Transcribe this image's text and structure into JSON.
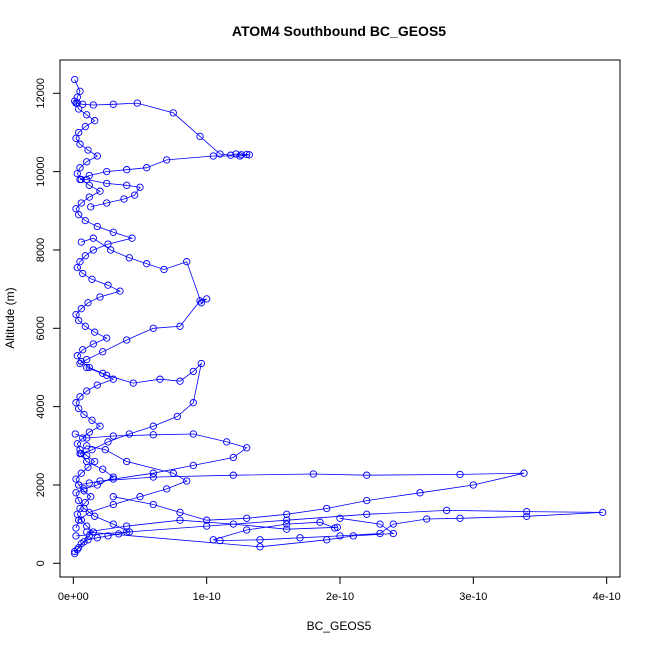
{
  "colors": {
    "series": "#0000ff",
    "frame": "#000000",
    "background": "#ffffff"
  },
  "chart_data": {
    "type": "scatter",
    "mode": "lines+markers",
    "marker": "open-circle",
    "title": "ATOM4 Southbound BC_GEOS5",
    "xlabel": "BC_GEOS5",
    "ylabel": "Altitude (m)",
    "xlim": [
      -1e-11,
      4.1e-10
    ],
    "ylim": [
      -350,
      12850
    ],
    "xticks": [
      0,
      1e-10,
      2e-10,
      3e-10,
      4e-10
    ],
    "xtick_labels": [
      "0e+00",
      "1e-10",
      "2e-10",
      "3e-10",
      "4e-10"
    ],
    "yticks": [
      0,
      2000,
      4000,
      6000,
      8000,
      10000,
      12000
    ],
    "ytick_labels": [
      "0",
      "2000",
      "4000",
      "6000",
      "8000",
      "10000",
      "12000"
    ],
    "grid": false,
    "legend": "none",
    "series": [
      {
        "x": [
          1e-12,
          4e-12,
          8e-12,
          1.2e-11,
          1.5e-11,
          1e-11,
          6e-12,
          3e-12,
          5e-12,
          9e-12,
          1.3e-11,
          8e-12,
          4e-12,
          2e-12,
          6e-12,
          1.1e-11,
          1.6e-11,
          1e-11,
          5e-12,
          3e-12,
          7e-12,
          1.2e-11,
          2e-11,
          1.4e-11,
          8e-12,
          4e-12,
          2e-12,
          5e-12,
          1e-11,
          1.8e-11,
          3e-11,
          2.2e-11,
          1.2e-11,
          6e-12,
          3e-12,
          7e-12,
          1.5e-11,
          2.5e-11,
          1.6e-11,
          9e-12,
          4e-12,
          2e-12,
          6e-12,
          1.1e-11,
          2e-11,
          3.5e-11,
          2.6e-11,
          1.4e-11,
          7e-12,
          3e-12,
          5e-12,
          9e-12,
          1.5e-11,
          2.6e-11,
          4.4e-11,
          3e-11,
          1.8e-11,
          9e-12,
          4e-12,
          2e-12,
          6e-12,
          1.2e-11,
          2e-11,
          1.2e-11,
          6e-12,
          3e-12,
          5e-12,
          1e-11,
          1.8e-11,
          1.1e-11,
          5e-12,
          2e-12,
          4e-12,
          9e-12,
          1.6e-11,
          1e-11,
          4e-12,
          2e-12,
          3e-12,
          5e-12,
          1e-12
        ],
        "y": [
          300,
          400,
          550,
          700,
          800,
          950,
          1100,
          1250,
          1400,
          1550,
          1700,
          1850,
          2000,
          2150,
          2300,
          2450,
          2600,
          2750,
          2900,
          3050,
          3200,
          3350,
          3500,
          3650,
          3800,
          3950,
          4100,
          4250,
          4400,
          4550,
          4700,
          4850,
          5000,
          5150,
          5300,
          5450,
          5600,
          5750,
          5900,
          6050,
          6200,
          6350,
          6500,
          6650,
          6800,
          6950,
          7100,
          7250,
          7400,
          7550,
          7700,
          7850,
          8000,
          8150,
          8300,
          8450,
          8600,
          8750,
          8900,
          9050,
          9200,
          9350,
          9500,
          9650,
          9800,
          9950,
          10100,
          10250,
          10400,
          10550,
          10700,
          10850,
          11000,
          11150,
          11300,
          11450,
          11600,
          11750,
          11900,
          12050,
          12350
        ]
      },
      {
        "x": [
          1e-12,
          3e-12,
          7e-12,
          1.5e-11,
          3e-11,
          4.8e-11,
          7.5e-11,
          9.5e-11,
          1.1e-10,
          1.18e-10,
          1.22e-10,
          1.26e-10,
          1.3e-10,
          1.32e-10,
          1.25e-10,
          1.05e-10,
          7e-11,
          5.5e-11,
          4e-11,
          2.5e-11,
          1.2e-11,
          5e-12,
          1e-11,
          2.5e-11,
          4e-11,
          5e-11,
          4.6e-11,
          3.8e-11,
          2.5e-11,
          1.3e-11
        ],
        "y": [
          11800,
          11750,
          11720,
          11700,
          11720,
          11750,
          11500,
          10900,
          10450,
          10420,
          10450,
          10430,
          10440,
          10430,
          10400,
          10400,
          10300,
          10100,
          10050,
          10000,
          9900,
          9800,
          9800,
          9700,
          9650,
          9600,
          9400,
          9300,
          9200,
          9100
        ]
      },
      {
        "x": [
          6e-12,
          1.5e-11,
          2.8e-11,
          4.2e-11,
          5.5e-11,
          6.8e-11,
          8.5e-11,
          9.6e-11,
          1e-10,
          9.5e-11,
          8e-11,
          6e-11,
          4e-11,
          2.2e-11,
          1e-11,
          5e-12
        ],
        "y": [
          8200,
          8300,
          8000,
          7800,
          7650,
          7500,
          7700,
          6650,
          6750,
          6700,
          6050,
          6000,
          5700,
          5400,
          5200,
          5100
        ]
      },
      {
        "x": [
          1e-11,
          2.5e-11,
          4.5e-11,
          6.5e-11,
          8e-11,
          9e-11,
          9.6e-11,
          9e-11,
          7.8e-11,
          6e-11,
          4.2e-11,
          2.6e-11,
          1.4e-11,
          6e-12
        ],
        "y": [
          5000,
          4800,
          4600,
          4700,
          4650,
          4900,
          5100,
          4100,
          3750,
          3500,
          3300,
          3100,
          2900,
          2800
        ]
      },
      {
        "x": [
          1.5e-12,
          1e-11,
          3e-11,
          6e-11,
          9e-11,
          1.15e-10,
          1.3e-10,
          1.2e-10,
          9e-11,
          6e-11,
          3e-11,
          1.2e-11,
          4e-12,
          2e-11,
          6e-11,
          1.2e-10,
          1.8e-10,
          2.2e-10,
          2.9e-10,
          3.38e-10,
          3e-10,
          2.6e-10,
          2.2e-10,
          1.9e-10,
          1.6e-10,
          1.3e-10,
          1e-10,
          8e-11,
          6e-11,
          3e-11
        ],
        "y": [
          3300,
          3200,
          3250,
          3280,
          3300,
          3100,
          2950,
          2700,
          2500,
          2300,
          2150,
          2050,
          2000,
          2100,
          2200,
          2250,
          2280,
          2250,
          2270,
          2300,
          2000,
          1800,
          1600,
          1400,
          1250,
          1150,
          1100,
          1300,
          1500,
          1700
        ]
      },
      {
        "x": [
          2e-12,
          4e-11,
          1e-10,
          1.6e-10,
          2.2e-10,
          2.8e-10,
          3.4e-10,
          3.97e-10,
          3.4e-10,
          2.9e-10,
          2.65e-10,
          2.4e-10,
          2.3e-10,
          2e-10,
          1.7e-10,
          1.4e-10,
          1.1e-10,
          1.05e-10,
          1.3e-10,
          1.6e-10,
          1.85e-10,
          1.96e-10,
          1.98e-10,
          1.6e-10,
          1.2e-10,
          8e-11,
          4e-11,
          1e-11,
          1.4e-10,
          1.9e-10,
          2.1e-10,
          2.4e-10,
          2.3e-10,
          2e-10
        ],
        "y": [
          700,
          800,
          950,
          1100,
          1250,
          1350,
          1320,
          1300,
          1200,
          1150,
          1130,
          1000,
          760,
          700,
          650,
          600,
          580,
          600,
          850,
          1000,
          1050,
          900,
          920,
          870,
          1000,
          1100,
          950,
          800,
          420,
          600,
          700,
          760,
          1000,
          1150
        ]
      },
      {
        "x": [
          1e-12,
          3e-12,
          6e-12,
          1.1e-11,
          1.8e-11,
          2.6e-11,
          3.4e-11,
          4.2e-11,
          3e-11,
          1.6e-11,
          8e-12,
          4e-12,
          2e-12,
          8e-12,
          1.8e-11,
          3e-11,
          2.2e-11,
          1e-11,
          5e-12,
          1e-11,
          2.4e-11,
          4e-11,
          7.5e-11,
          8.5e-11,
          7e-11,
          5e-11,
          3e-11,
          1.2e-11,
          4e-12,
          2e-12
        ],
        "y": [
          250,
          350,
          500,
          600,
          650,
          700,
          750,
          800,
          1000,
          1200,
          1400,
          1600,
          1800,
          1900,
          2000,
          2200,
          2400,
          2600,
          2800,
          3000,
          2900,
          2600,
          2300,
          2100,
          1900,
          1700,
          1500,
          1300,
          1100,
          900
        ]
      }
    ]
  }
}
